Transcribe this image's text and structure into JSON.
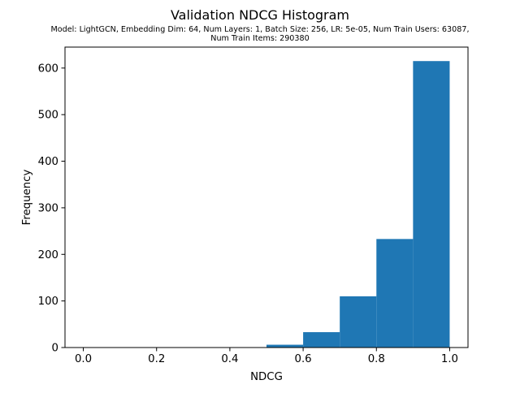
{
  "chart_data": {
    "type": "bar",
    "title": "Validation NDCG Histogram",
    "subtitle_lines": [
      "Model: LightGCN, Embedding Dim: 64, Num Layers: 1, Batch Size: 256, LR: 5e-05, Num Train Users: 63087,",
      "Num Train Items: 290380"
    ],
    "xlabel": "NDCG",
    "ylabel": "Frequency",
    "xlim": [
      -0.05,
      1.05
    ],
    "ylim": [
      0,
      645
    ],
    "bin_edges": [
      0.0,
      0.1,
      0.2,
      0.3,
      0.4,
      0.5,
      0.6,
      0.7,
      0.8,
      0.9,
      1.0
    ],
    "values": [
      0,
      0,
      0,
      0,
      0,
      6,
      33,
      110,
      233,
      615
    ],
    "xticks": [
      0.0,
      0.2,
      0.4,
      0.6,
      0.8,
      1.0
    ],
    "xtick_labels": [
      "0.0",
      "0.2",
      "0.4",
      "0.6",
      "0.8",
      "1.0"
    ],
    "yticks": [
      0,
      100,
      200,
      300,
      400,
      500,
      600
    ],
    "ytick_labels": [
      "0",
      "100",
      "200",
      "300",
      "400",
      "500",
      "600"
    ],
    "bar_color": "#1f77b4",
    "grid": false,
    "legend": "none"
  }
}
